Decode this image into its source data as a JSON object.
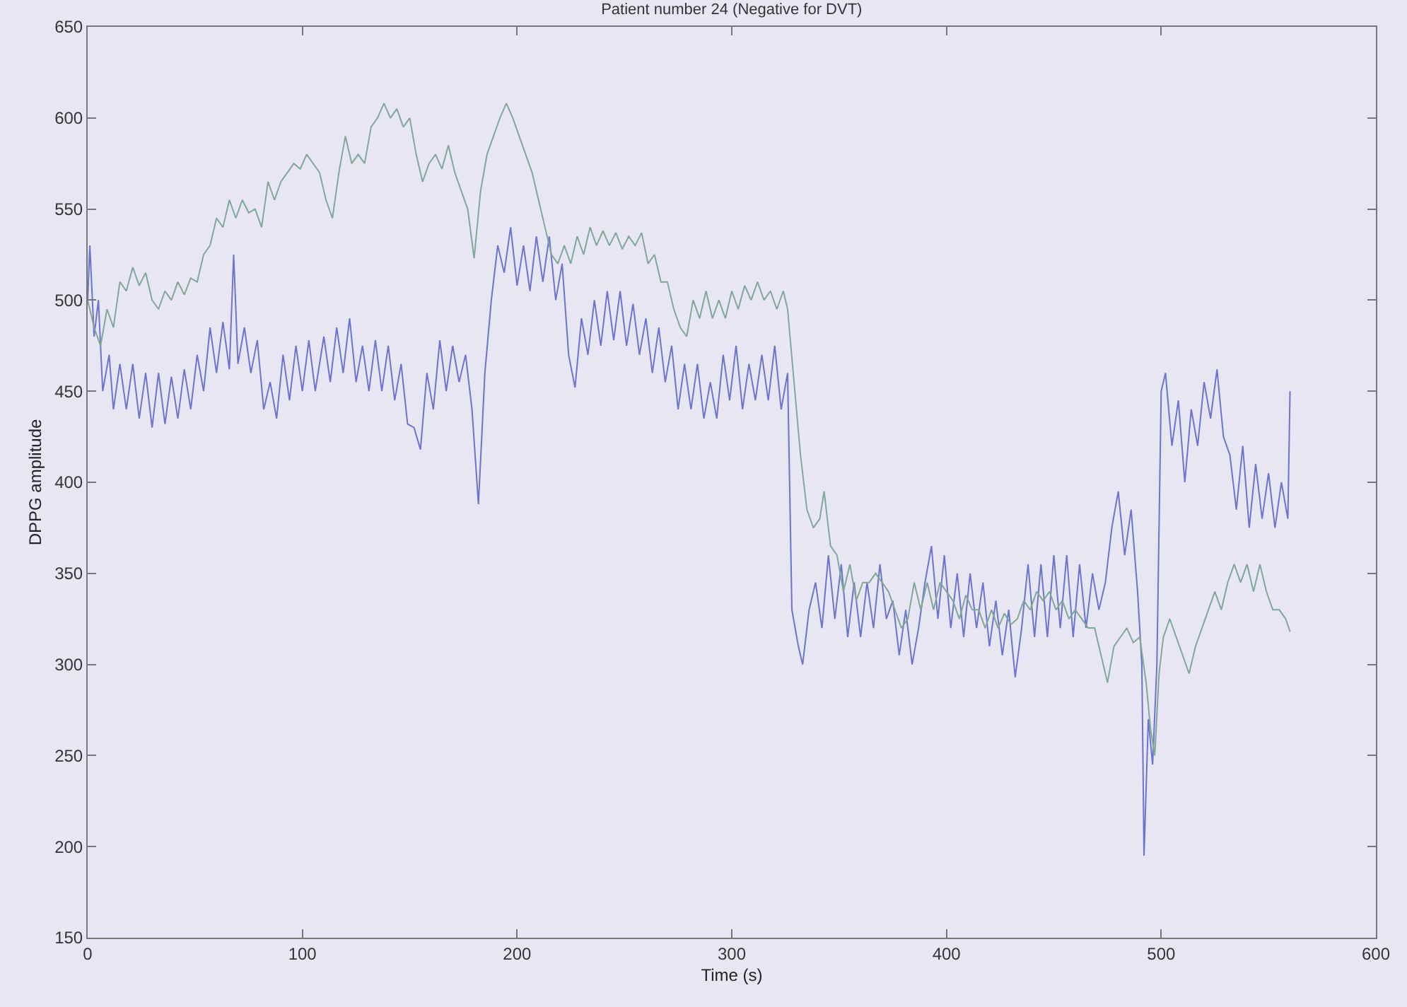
{
  "chart_data": {
    "type": "line",
    "title": "Patient number 24 (Negative for DVT)",
    "xlabel": "Time (s)",
    "ylabel": "DPPG amplitude",
    "xlim": [
      0,
      600
    ],
    "xticks": [
      0,
      100,
      200,
      300,
      400,
      500,
      600
    ],
    "ylim": [
      150,
      650
    ],
    "yticks": [
      150,
      200,
      250,
      300,
      350,
      400,
      450,
      500,
      550,
      600,
      650
    ],
    "grid": false,
    "marker": "none",
    "line_style": "solid",
    "series": [
      {
        "color": "#6b74d0",
        "x": [
          0,
          1,
          3,
          5,
          7,
          10,
          12,
          15,
          18,
          21,
          24,
          27,
          30,
          33,
          36,
          39,
          42,
          45,
          48,
          51,
          54,
          57,
          60,
          63,
          66,
          68,
          70,
          73,
          76,
          79,
          82,
          85,
          88,
          91,
          94,
          97,
          100,
          103,
          106,
          110,
          113,
          116,
          119,
          122,
          125,
          128,
          131,
          134,
          137,
          140,
          143,
          146,
          149,
          152,
          155,
          158,
          161,
          164,
          167,
          170,
          173,
          176,
          179,
          182,
          185,
          188,
          191,
          194,
          197,
          200,
          203,
          206,
          209,
          212,
          215,
          218,
          221,
          224,
          227,
          230,
          233,
          236,
          239,
          242,
          245,
          248,
          251,
          254,
          257,
          260,
          263,
          266,
          269,
          272,
          275,
          278,
          281,
          284,
          287,
          290,
          293,
          296,
          299,
          302,
          305,
          308,
          311,
          314,
          317,
          320,
          323,
          326,
          328,
          331,
          333,
          336,
          339,
          342,
          345,
          348,
          351,
          354,
          357,
          360,
          363,
          366,
          369,
          372,
          375,
          378,
          381,
          384,
          387,
          390,
          393,
          396,
          399,
          402,
          405,
          408,
          411,
          414,
          417,
          420,
          423,
          426,
          429,
          432,
          435,
          438,
          441,
          444,
          447,
          450,
          453,
          456,
          459,
          462,
          465,
          468,
          471,
          474,
          477,
          480,
          483,
          486,
          489,
          491,
          492,
          494,
          496,
          498,
          500,
          502,
          505,
          508,
          511,
          514,
          517,
          520,
          523,
          526,
          529,
          532,
          535,
          538,
          541,
          544,
          547,
          550,
          553,
          556,
          559,
          560
        ],
        "values": [
          500,
          530,
          480,
          500,
          450,
          470,
          440,
          465,
          440,
          465,
          435,
          460,
          430,
          460,
          432,
          458,
          435,
          462,
          440,
          470,
          450,
          485,
          460,
          488,
          462,
          525,
          465,
          485,
          460,
          478,
          440,
          455,
          435,
          470,
          445,
          475,
          450,
          478,
          450,
          480,
          455,
          485,
          460,
          490,
          455,
          475,
          450,
          478,
          450,
          475,
          445,
          465,
          432,
          430,
          418,
          460,
          440,
          478,
          450,
          475,
          455,
          470,
          440,
          388,
          460,
          500,
          530,
          515,
          540,
          508,
          530,
          505,
          535,
          510,
          535,
          500,
          520,
          470,
          452,
          490,
          470,
          500,
          475,
          505,
          478,
          505,
          475,
          498,
          470,
          490,
          460,
          485,
          455,
          475,
          440,
          465,
          440,
          465,
          435,
          455,
          435,
          470,
          445,
          475,
          440,
          465,
          445,
          470,
          445,
          475,
          440,
          460,
          330,
          310,
          300,
          330,
          345,
          320,
          360,
          325,
          355,
          315,
          345,
          315,
          345,
          320,
          355,
          325,
          335,
          305,
          330,
          300,
          320,
          345,
          365,
          325,
          360,
          320,
          350,
          315,
          350,
          320,
          345,
          310,
          335,
          305,
          330,
          293,
          320,
          355,
          315,
          355,
          315,
          360,
          320,
          360,
          315,
          355,
          320,
          350,
          330,
          345,
          375,
          395,
          360,
          385,
          340,
          300,
          195,
          270,
          245,
          300,
          450,
          460,
          420,
          445,
          400,
          440,
          420,
          455,
          435,
          462,
          425,
          415,
          385,
          420,
          375,
          410,
          380,
          405,
          375,
          400,
          380,
          450
        ]
      },
      {
        "color": "#7fa896",
        "x": [
          0,
          3,
          6,
          9,
          12,
          15,
          18,
          21,
          24,
          27,
          30,
          33,
          36,
          39,
          42,
          45,
          48,
          51,
          54,
          57,
          60,
          63,
          66,
          69,
          72,
          75,
          78,
          81,
          84,
          87,
          90,
          93,
          96,
          99,
          102,
          105,
          108,
          111,
          114,
          117,
          120,
          123,
          126,
          129,
          132,
          135,
          138,
          141,
          144,
          147,
          150,
          153,
          156,
          159,
          162,
          165,
          168,
          171,
          174,
          177,
          180,
          183,
          186,
          189,
          192,
          195,
          198,
          201,
          204,
          207,
          210,
          213,
          216,
          219,
          222,
          225,
          228,
          231,
          234,
          237,
          240,
          243,
          246,
          249,
          252,
          255,
          258,
          261,
          264,
          267,
          270,
          273,
          276,
          279,
          282,
          285,
          288,
          291,
          294,
          297,
          300,
          303,
          306,
          309,
          312,
          315,
          318,
          321,
          324,
          326,
          329,
          332,
          335,
          338,
          341,
          343,
          346,
          349,
          352,
          355,
          358,
          361,
          364,
          367,
          370,
          373,
          376,
          379,
          382,
          385,
          388,
          391,
          394,
          397,
          400,
          403,
          406,
          409,
          412,
          415,
          418,
          421,
          424,
          427,
          430,
          433,
          436,
          439,
          442,
          445,
          448,
          451,
          454,
          457,
          460,
          463,
          466,
          469,
          472,
          475,
          478,
          481,
          484,
          487,
          490,
          493,
          495,
          497,
          499,
          501,
          504,
          507,
          510,
          513,
          516,
          519,
          522,
          525,
          528,
          531,
          534,
          537,
          540,
          543,
          546,
          549,
          552,
          555,
          558,
          560
        ],
        "values": [
          500,
          485,
          475,
          495,
          485,
          510,
          505,
          518,
          508,
          515,
          500,
          495,
          505,
          500,
          510,
          503,
          512,
          510,
          525,
          530,
          545,
          540,
          555,
          545,
          555,
          548,
          550,
          540,
          565,
          555,
          565,
          570,
          575,
          572,
          580,
          575,
          570,
          555,
          545,
          570,
          590,
          575,
          580,
          575,
          595,
          600,
          608,
          600,
          605,
          595,
          600,
          580,
          565,
          575,
          580,
          572,
          585,
          570,
          560,
          550,
          523,
          560,
          580,
          590,
          600,
          608,
          600,
          590,
          580,
          570,
          555,
          540,
          525,
          520,
          530,
          520,
          535,
          525,
          540,
          530,
          538,
          530,
          537,
          528,
          535,
          530,
          537,
          520,
          525,
          510,
          510,
          495,
          485,
          480,
          500,
          490,
          505,
          490,
          500,
          490,
          505,
          495,
          508,
          500,
          510,
          500,
          505,
          495,
          505,
          495,
          455,
          415,
          385,
          375,
          380,
          395,
          365,
          360,
          340,
          355,
          335,
          345,
          345,
          350,
          345,
          340,
          330,
          320,
          325,
          345,
          330,
          345,
          330,
          345,
          340,
          335,
          325,
          338,
          330,
          330,
          320,
          330,
          320,
          328,
          322,
          325,
          335,
          330,
          340,
          335,
          340,
          330,
          335,
          325,
          330,
          325,
          320,
          320,
          305,
          290,
          310,
          315,
          320,
          312,
          315,
          290,
          265,
          250,
          295,
          315,
          325,
          315,
          305,
          295,
          310,
          320,
          330,
          340,
          330,
          345,
          355,
          345,
          355,
          340,
          355,
          340,
          330,
          330,
          325,
          318
        ]
      }
    ]
  }
}
